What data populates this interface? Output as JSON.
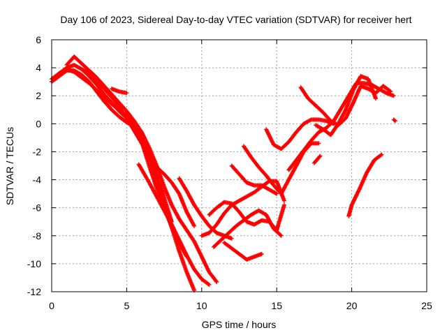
{
  "chart_data": {
    "type": "scatter",
    "title": "Day 106 of 2023, Sidereal Day-to-day VTEC variation (SDTVAR) for receiver hert",
    "xlabel": "GPS time / hours",
    "ylabel": "SDTVAR / TECUs",
    "xlim": [
      0,
      25
    ],
    "ylim": [
      -12,
      6
    ],
    "xticks": [
      0,
      5,
      10,
      15,
      20,
      25
    ],
    "yticks": [
      -12,
      -10,
      -8,
      -6,
      -4,
      -2,
      0,
      2,
      4,
      6
    ],
    "grid": true,
    "marker": "+",
    "color": "#ff0000",
    "series": [
      {
        "x": [
          0.0,
          0.5,
          1.0,
          1.5,
          2.0,
          2.5,
          3.0,
          3.5,
          4.0,
          4.5,
          5.0,
          5.5,
          6.0,
          6.5,
          7.0,
          7.5,
          8.0,
          8.5,
          9.0,
          9.5
        ],
        "y": [
          3.2,
          3.6,
          3.9,
          3.7,
          3.3,
          2.9,
          2.4,
          1.9,
          1.4,
          1.0,
          0.6,
          0.1,
          -0.8,
          -2.2,
          -3.9,
          -5.6,
          -7.4,
          -9.1,
          -10.6,
          -11.9
        ]
      },
      {
        "x": [
          0.0,
          0.5,
          1.0,
          1.5,
          2.0,
          2.5,
          3.0,
          3.5,
          4.0,
          4.5,
          5.0,
          5.5,
          6.0,
          6.5,
          7.0,
          7.5,
          8.0,
          8.5,
          9.0
        ],
        "y": [
          3.0,
          3.4,
          3.8,
          3.8,
          3.5,
          3.0,
          2.3,
          1.6,
          1.0,
          0.5,
          0.1,
          -0.2,
          -1.3,
          -3.0,
          -4.6,
          -6.0,
          -7.4,
          -8.5,
          -9.5
        ]
      },
      {
        "x": [
          0.5,
          1.0,
          1.5,
          2.0,
          2.5,
          3.0,
          3.5,
          4.0,
          4.5,
          5.0,
          5.5,
          6.0,
          6.5,
          7.0,
          7.5,
          8.0
        ],
        "y": [
          3.6,
          4.0,
          4.2,
          3.9,
          3.4,
          2.8,
          2.1,
          1.5,
          0.9,
          0.4,
          -0.2,
          -0.8,
          -2.0,
          -3.6,
          -5.3,
          -7.0
        ]
      },
      {
        "x": [
          1.0,
          1.5,
          2.0,
          2.5,
          3.0,
          3.5,
          4.0,
          4.5,
          5.0,
          5.5,
          6.0,
          6.5,
          7.0,
          7.5,
          8.0,
          8.5,
          9.0,
          9.5,
          10.0,
          10.5,
          11.0
        ],
        "y": [
          4.2,
          4.8,
          4.3,
          3.8,
          3.3,
          2.7,
          2.1,
          1.5,
          0.9,
          0.2,
          -0.6,
          -1.7,
          -3.0,
          -4.5,
          -5.8,
          -6.8,
          -7.6,
          -8.4,
          -9.5,
          -10.6,
          -11.3
        ]
      },
      {
        "x": [
          2.0,
          2.5,
          3.0,
          3.5,
          4.0,
          4.5,
          5.0,
          5.5,
          6.0,
          6.5,
          7.0,
          7.5,
          8.0,
          8.5,
          9.0,
          9.5
        ],
        "y": [
          3.9,
          3.6,
          3.1,
          2.5,
          1.9,
          1.2,
          0.4,
          -0.5,
          -1.4,
          -2.3,
          -3.1,
          -3.6,
          -4.2,
          -5.0,
          -6.3,
          -7.3
        ]
      },
      {
        "x": [
          4.0,
          4.5,
          5.0
        ],
        "y": [
          2.5,
          2.3,
          2.2
        ]
      },
      {
        "x": [
          5.8,
          6.5,
          7.0,
          7.5,
          8.0,
          8.5,
          9.0,
          9.5,
          10.0,
          10.5
        ],
        "y": [
          -2.9,
          -4.2,
          -5.2,
          -6.2,
          -7.2,
          -8.3,
          -9.4,
          -10.4,
          -11.1,
          -11.5
        ]
      },
      {
        "x": [
          8.5,
          9.0,
          9.5,
          10.0,
          10.5,
          11.0,
          11.5,
          12.0
        ],
        "y": [
          -3.9,
          -4.8,
          -5.8,
          -6.6,
          -7.3,
          -7.8,
          -8.0,
          -8.2
        ]
      },
      {
        "x": [
          10.0,
          10.5,
          11.0,
          11.5,
          12.0,
          12.5,
          13.0,
          13.5,
          14.0,
          14.5,
          15.0,
          15.5
        ],
        "y": [
          -8.0,
          -7.8,
          -7.2,
          -6.4,
          -5.8,
          -5.5,
          -5.2,
          -4.9,
          -4.5,
          -4.1,
          -4.1,
          -5.5
        ]
      },
      {
        "x": [
          10.5,
          11.0,
          11.5,
          12.0,
          12.5,
          13.0,
          13.5,
          14.0,
          14.5,
          15.0,
          15.5
        ],
        "y": [
          -6.5,
          -6.0,
          -5.6,
          -5.7,
          -6.3,
          -7.0,
          -7.2,
          -6.9,
          -7.0,
          -7.6,
          -5.8
        ]
      },
      {
        "x": [
          10.8,
          11.3,
          11.8,
          12.3,
          12.8,
          13.3,
          13.8,
          14.3,
          14.8,
          15.3
        ],
        "y": [
          -8.8,
          -8.3,
          -7.8,
          -7.3,
          -6.9,
          -6.5,
          -6.2,
          -6.5,
          -7.5,
          -8.0
        ]
      },
      {
        "x": [
          11.5,
          12.0,
          12.5,
          13.0,
          13.5,
          14.0
        ],
        "y": [
          -8.5,
          -8.9,
          -9.3,
          -9.7,
          -9.5,
          -9.3
        ]
      },
      {
        "x": [
          12.0,
          12.5,
          13.0,
          13.5,
          14.0,
          14.5,
          15.0
        ],
        "y": [
          -3.0,
          -3.6,
          -4.2,
          -4.4,
          -4.4,
          -4.7,
          -5.0
        ]
      },
      {
        "x": [
          12.8,
          13.3,
          13.8,
          14.3,
          14.8,
          15.3,
          15.8,
          16.3,
          16.8,
          17.3,
          17.8
        ],
        "y": [
          -1.6,
          -2.4,
          -3.1,
          -3.7,
          -4.4,
          -5.0,
          -4.0,
          -3.0,
          -2.0,
          -1.4,
          -1.4
        ]
      },
      {
        "x": [
          14.3,
          14.8,
          15.3,
          15.8,
          16.3,
          16.8,
          17.3,
          17.8,
          18.3,
          18.8
        ],
        "y": [
          -0.4,
          -1.5,
          -1.8,
          -1.3,
          -0.6,
          0.0,
          0.3,
          0.3,
          0.2,
          0.0
        ]
      },
      {
        "x": [
          15.8,
          16.3,
          16.8,
          17.3,
          17.8,
          18.3,
          18.8,
          19.3,
          19.8,
          20.3,
          20.8,
          21.3,
          21.8,
          22.3,
          22.8
        ],
        "y": [
          -3.3,
          -2.6,
          -1.9,
          -1.2,
          -0.6,
          -0.3,
          0.2,
          1.1,
          2.0,
          2.9,
          2.9,
          2.8,
          2.5,
          2.2,
          2.0
        ]
      },
      {
        "x": [
          16.6,
          17.1,
          17.6,
          18.1,
          18.6,
          19.1,
          19.6,
          20.1,
          20.6,
          21.1,
          21.6,
          22.1,
          22.6
        ],
        "y": [
          2.6,
          1.8,
          1.3,
          0.8,
          0.2,
          -0.1,
          0.4,
          1.5,
          2.7,
          2.5,
          2.2,
          2.7,
          2.3
        ]
      },
      {
        "x": [
          17.6,
          18.1,
          18.6,
          19.1,
          19.6,
          20.1,
          20.6,
          21.1,
          21.6
        ],
        "y": [
          -0.1,
          -0.4,
          -0.8,
          0.0,
          1.0,
          2.4,
          3.4,
          3.2,
          1.8
        ]
      },
      {
        "x": [
          17.5,
          17.9
        ],
        "y": [
          -2.8,
          -2.3
        ]
      },
      {
        "x": [
          19.8,
          20.0,
          20.5,
          21.0,
          21.5,
          22.0
        ],
        "y": [
          -6.6,
          -5.8,
          -4.7,
          -3.5,
          -2.6,
          -2.2
        ]
      },
      {
        "x": [
          22.8,
          22.9
        ],
        "y": [
          0.3,
          0.2
        ]
      }
    ]
  }
}
